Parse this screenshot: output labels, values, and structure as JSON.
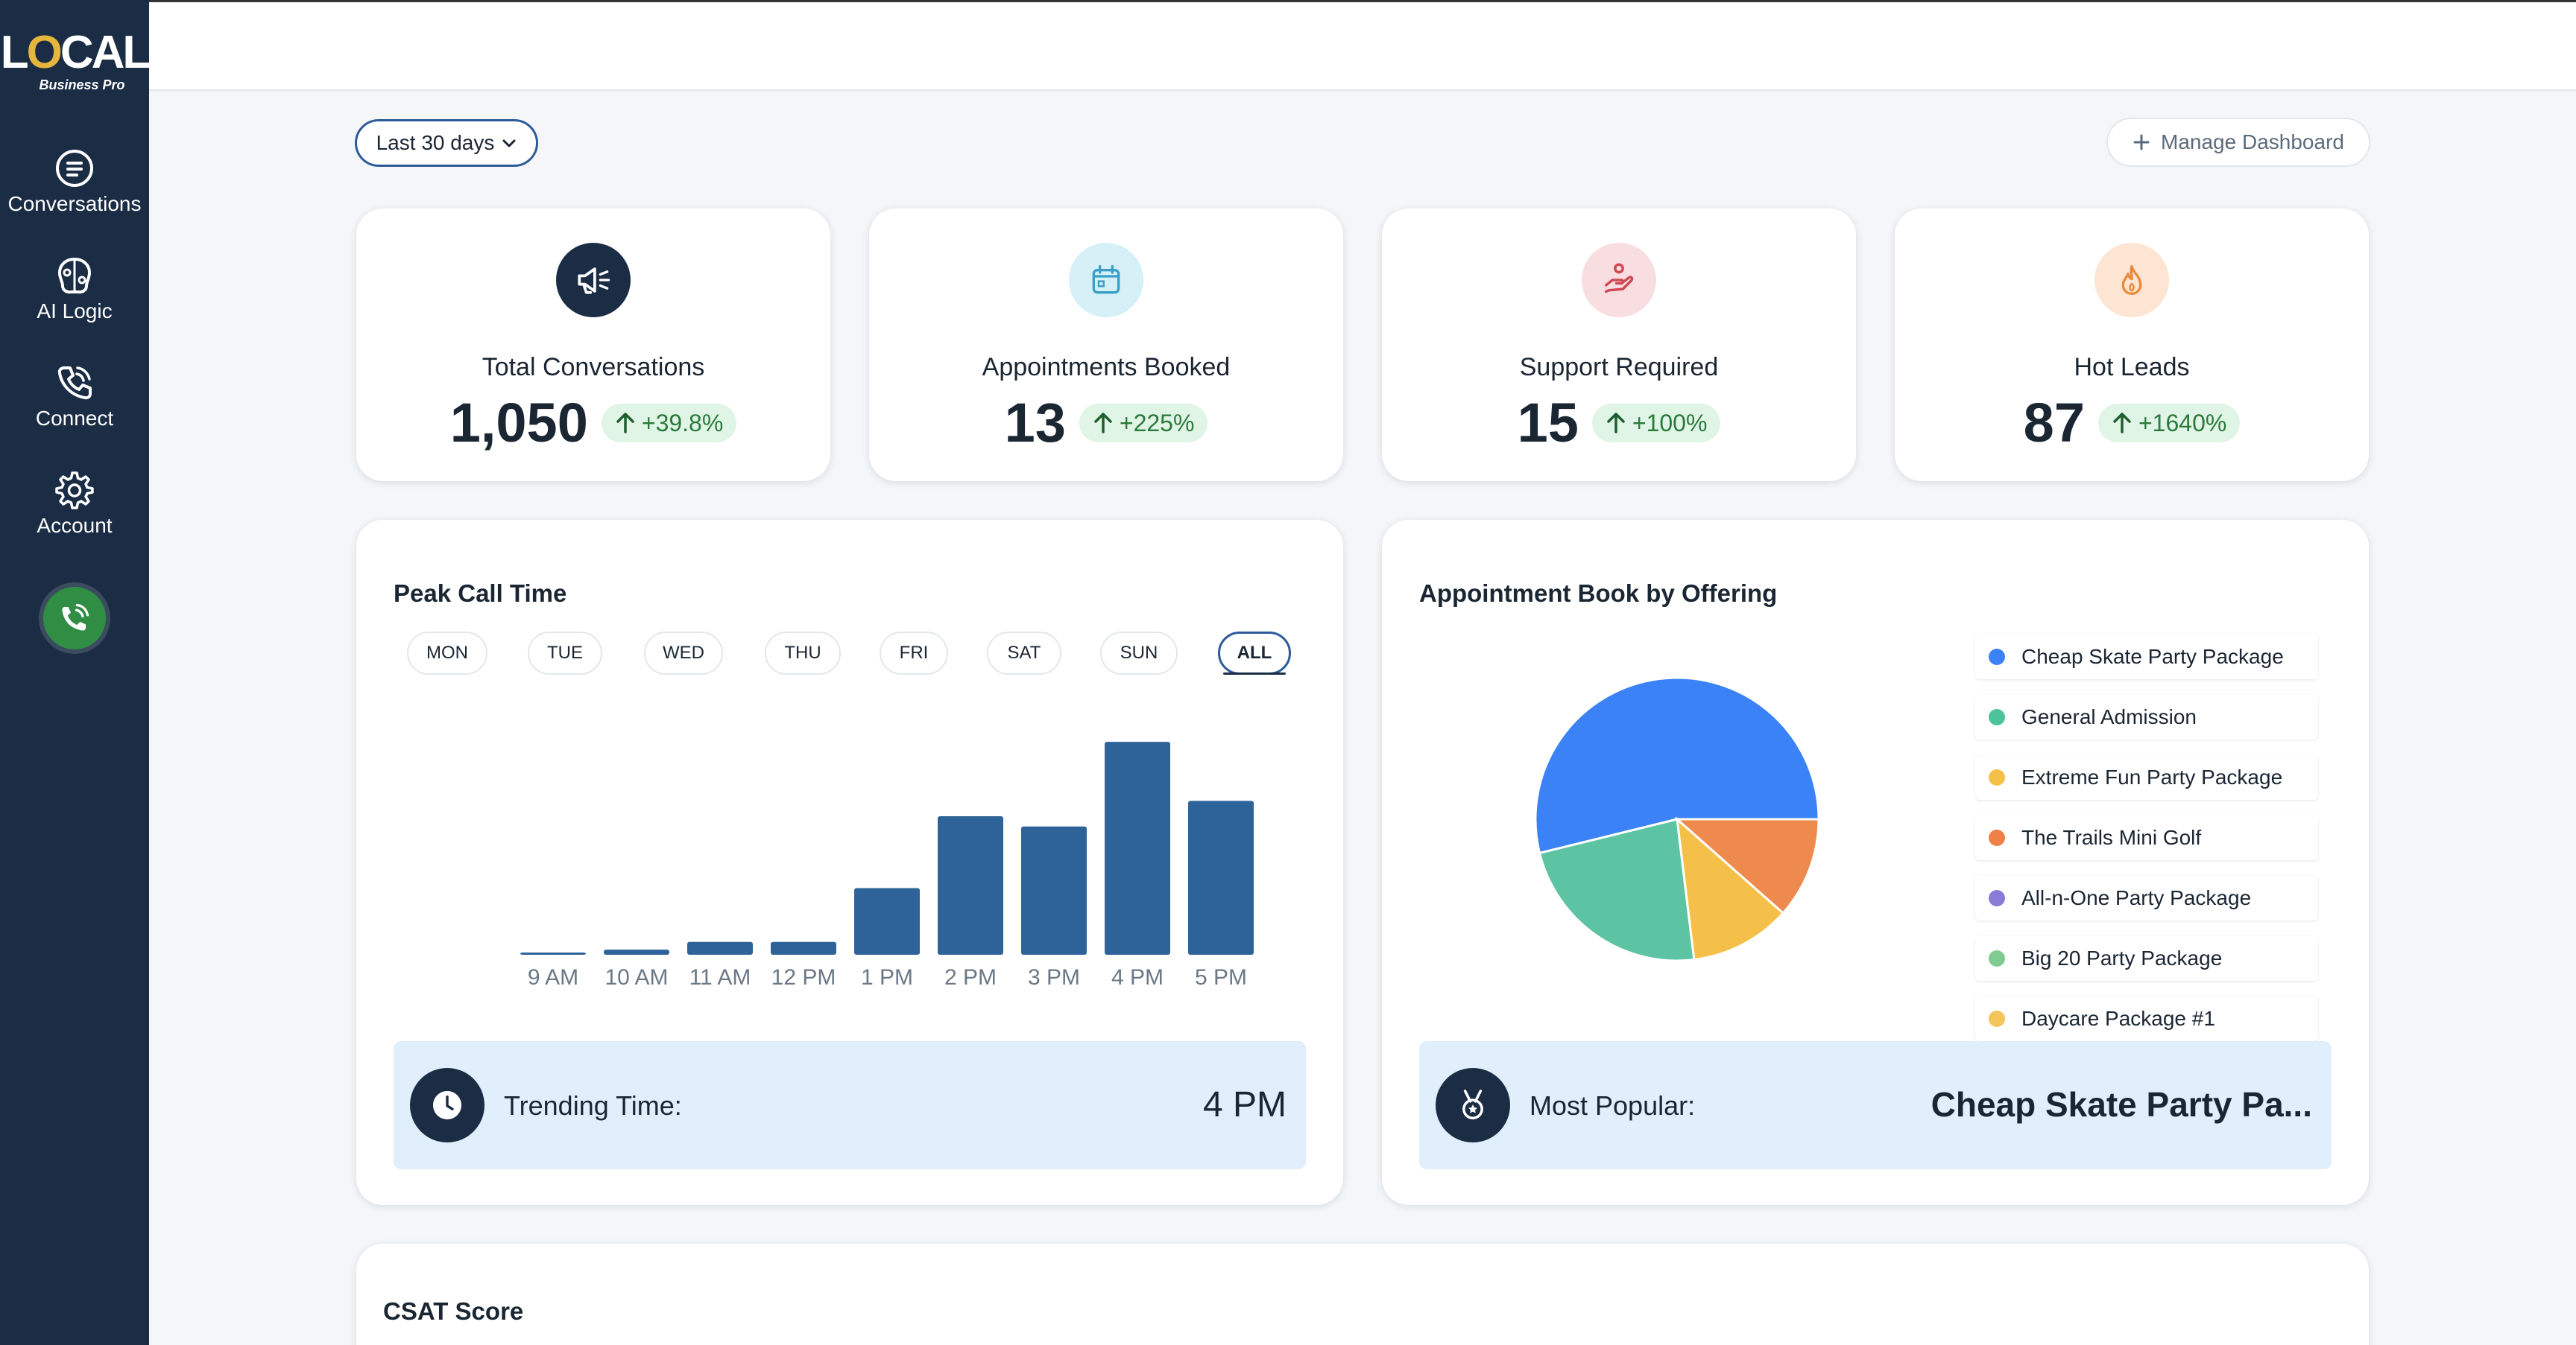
{
  "brand": {
    "logo_word_left": "L",
    "logo_word_o": "O",
    "logo_word_right": "CAL",
    "logo_sub": "Business Pro"
  },
  "sidebar": {
    "items": [
      {
        "label": "Conversations",
        "icon": "chat-icon"
      },
      {
        "label": "AI Logic",
        "icon": "brain-icon"
      },
      {
        "label": "Connect",
        "icon": "phone-icon"
      },
      {
        "label": "Account",
        "icon": "gear-icon"
      }
    ],
    "call_button_icon": "phone-call-icon"
  },
  "controls": {
    "date_range": "Last 30 days",
    "manage_dashboard": "Manage Dashboard"
  },
  "stats": [
    {
      "title": "Total Conversations",
      "value": "1,050",
      "change": "+39.8%",
      "icon": "megaphone-icon",
      "icon_bg": "#1B2D45",
      "icon_color": "#FFFFFF"
    },
    {
      "title": "Appointments Booked",
      "value": "13",
      "change": "+225%",
      "icon": "calendar-icon",
      "icon_bg": "#D6F0F8",
      "icon_color": "#3A9FC8"
    },
    {
      "title": "Support Required",
      "value": "15",
      "change": "+100%",
      "icon": "support-icon",
      "icon_bg": "#F8DEE0",
      "icon_color": "#D04952"
    },
    {
      "title": "Hot Leads",
      "value": "87",
      "change": "+1640%",
      "icon": "fire-icon",
      "icon_bg": "#FCE6D3",
      "icon_color": "#E98A3A"
    }
  ],
  "peak_call": {
    "title": "Peak Call Time",
    "days": [
      "MON",
      "TUE",
      "WED",
      "THU",
      "FRI",
      "SAT",
      "SUN",
      "ALL"
    ],
    "active_day": "ALL",
    "trending_label": "Trending Time:",
    "trending_value": "4 PM"
  },
  "appointment_offering": {
    "title": "Appointment Book by Offering",
    "legend": [
      {
        "name": "Cheap Skate Party Package",
        "color": "#3B82F6"
      },
      {
        "name": "General Admission",
        "color": "#4CC39D"
      },
      {
        "name": "Extreme Fun Party Package",
        "color": "#F5C04A"
      },
      {
        "name": "The Trails Mini Golf",
        "color": "#EE8048"
      },
      {
        "name": "All-n-One Party Package",
        "color": "#8B7BD6"
      },
      {
        "name": "Big 20 Party Package",
        "color": "#7FCB92"
      },
      {
        "name": "Daycare Package #1",
        "color": "#F3C55A"
      }
    ],
    "popular_label": "Most Popular:",
    "popular_value": "Cheap Skate Party Pa..."
  },
  "csat": {
    "title": "CSAT Score"
  },
  "chart_data": [
    {
      "type": "bar",
      "title": "Peak Call Time",
      "categories": [
        "9 AM",
        "10 AM",
        "11 AM",
        "12 PM",
        "1 PM",
        "2 PM",
        "3 PM",
        "4 PM",
        "5 PM"
      ],
      "values": [
        0.5,
        2,
        5,
        5,
        26,
        54,
        50,
        83,
        60
      ],
      "ylim": [
        0,
        90
      ],
      "color": "#2D6399",
      "grid": false
    },
    {
      "type": "pie",
      "title": "Appointment Book by Offering",
      "categories": [
        "Cheap Skate Party Package",
        "General Admission",
        "Extreme Fun Party Package",
        "The Trails Mini Golf"
      ],
      "values": [
        7,
        3,
        1.5,
        1.5
      ],
      "colors": [
        "#3B82F6",
        "#5CC4A2",
        "#F5C04A",
        "#EE8A4D"
      ]
    }
  ]
}
